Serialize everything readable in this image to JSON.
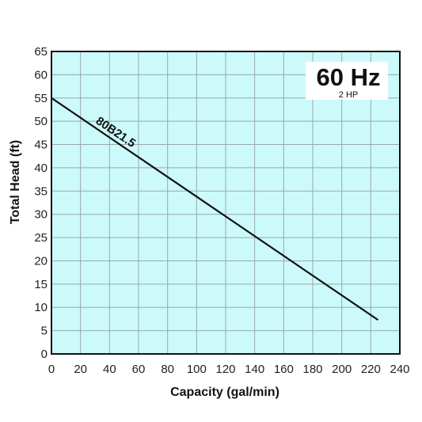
{
  "chart_data": {
    "type": "line",
    "title": "60 Hz",
    "subtitle": "2 HP",
    "xlabel": "Capacity (gal/min)",
    "ylabel": "Total Head (ft)",
    "xlim": [
      0,
      240
    ],
    "ylim": [
      0,
      65
    ],
    "xticks": [
      0,
      20,
      40,
      60,
      80,
      100,
      120,
      140,
      160,
      180,
      200,
      220,
      240
    ],
    "yticks": [
      0,
      5,
      10,
      15,
      20,
      25,
      30,
      35,
      40,
      45,
      50,
      55,
      60,
      65
    ],
    "grid": true,
    "background_color": "#ccfafa",
    "grid_color": "#9aa8a8",
    "line_color": "#111111",
    "series": [
      {
        "name": "80B21.5",
        "x": [
          0,
          225
        ],
        "y": [
          55,
          7.3
        ]
      }
    ]
  }
}
